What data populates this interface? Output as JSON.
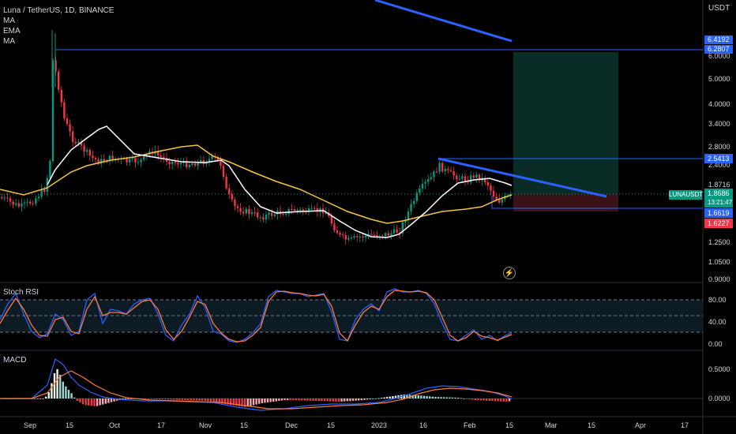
{
  "legend": {
    "symbol": "Luna / TetherUS, 1D, BINANCE",
    "indicators": [
      "MA",
      "EMA",
      "MA"
    ]
  },
  "currency": "USDT",
  "price_axis": {
    "labels": [
      "6.0000",
      "5.0000",
      "4.0000",
      "3.4000",
      "2.8000",
      "2.4000",
      "1.8716",
      "1.2500",
      "1.0500",
      "0.9000"
    ]
  },
  "price_tags": [
    {
      "value": "6.4192",
      "color": "#2962ff"
    },
    {
      "value": "6.2807",
      "color": "#2962ff"
    },
    {
      "value": "2.5413",
      "color": "#2962ff"
    },
    {
      "value": "1.6619",
      "color": "#2962ff"
    },
    {
      "value": "1.6227",
      "color": "#f23645"
    }
  ],
  "current_price": {
    "symbol": "LUNAUSDT",
    "price": "1.8686",
    "countdown": "13:21:47",
    "color": "#089981"
  },
  "rsi": {
    "title": "Stoch RSI",
    "labels": [
      "80.00",
      "40.00",
      "0.00"
    ]
  },
  "macd": {
    "title": "MACD",
    "labels": [
      "0.5000",
      "0.0000"
    ]
  },
  "time_axis": [
    "Sep",
    "15",
    "Oct",
    "17",
    "Nov",
    "15",
    "Dec",
    "15",
    "2023",
    "16",
    "Feb",
    "15",
    "Mar",
    "15",
    "Apr",
    "17"
  ],
  "colors": {
    "up": "#089981",
    "down": "#f23645",
    "line_blue": "#2962ff",
    "ma_white": "#ffffff",
    "ma_yellow": "#f5c242"
  }
}
